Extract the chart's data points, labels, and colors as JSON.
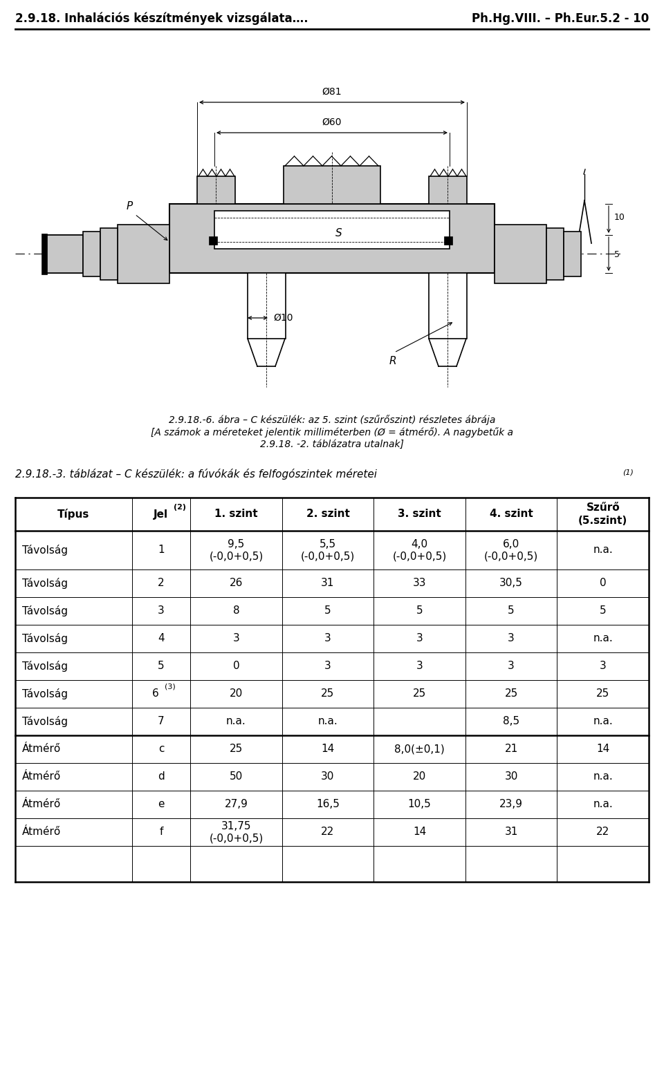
{
  "header_left": "2.9.18. Inhalációs készítmények vizsgálata….",
  "header_right": "Ph.Hg.VIII. – Ph.Eur.5.2 - 10",
  "figure_caption_line1": "2.9.18.-6. ábra – C készülék: az 5. szint (szűrőszint) részletes ábrája",
  "figure_caption_line2": "[A számok a méreteket jelentik milliméterben (Ø = átmérő). A nagybetűk a",
  "figure_caption_line3": "2.9.18. -2. táblázatra utalnak]",
  "table_title": "2.9.18.-3. táblázat – C készülék: a fúvókák és felfogószintek méretei",
  "table_title_superscript": "(1)",
  "col_headers": [
    "Típus",
    "Jel",
    "1. szint",
    "2. szint",
    "3. szint",
    "4. szint",
    "Szűrő\n(5.szint)"
  ],
  "col_header_superscripts": [
    "",
    "(2)",
    "",
    "",
    "",
    "",
    ""
  ],
  "rows": [
    {
      "tipus": "Távolság",
      "jel": "1",
      "jel_sup": "",
      "s1": "9,5\n(-0,0+0,5)",
      "s2": "5,5\n(-0,0+0,5)",
      "s3": "4,0\n(-0,0+0,5)",
      "s4": "6,0\n(-0,0+0,5)",
      "szuro": "n.a."
    },
    {
      "tipus": "Távolság",
      "jel": "2",
      "jel_sup": "",
      "s1": "26",
      "s2": "31",
      "s3": "33",
      "s4": "30,5",
      "szuro": "0"
    },
    {
      "tipus": "Távolság",
      "jel": "3",
      "jel_sup": "",
      "s1": "8",
      "s2": "5",
      "s3": "5",
      "s4": "5",
      "szuro": "5"
    },
    {
      "tipus": "Távolság",
      "jel": "4",
      "jel_sup": "",
      "s1": "3",
      "s2": "3",
      "s3": "3",
      "s4": "3",
      "szuro": "n.a."
    },
    {
      "tipus": "Távolság",
      "jel": "5",
      "jel_sup": "",
      "s1": "0",
      "s2": "3",
      "s3": "3",
      "s4": "3",
      "szuro": "3"
    },
    {
      "tipus": "Távolság",
      "jel": "6",
      "jel_sup": "(3)",
      "s1": "20",
      "s2": "25",
      "s3": "25",
      "s4": "25",
      "szuro": "25"
    },
    {
      "tipus": "Távolság",
      "jel": "7",
      "jel_sup": "",
      "s1": "n.a.",
      "s2": "n.a.",
      "s3": "",
      "s4": "8,5",
      "szuro": "n.a."
    },
    {
      "tipus": "Átmérő",
      "jel": "c",
      "jel_sup": "",
      "s1": "25",
      "s2": "14",
      "s3": "8,0(±0,1)",
      "s4": "21",
      "szuro": "14"
    },
    {
      "tipus": "Átmérő",
      "jel": "d",
      "jel_sup": "",
      "s1": "50",
      "s2": "30",
      "s3": "20",
      "s4": "30",
      "szuro": "n.a."
    },
    {
      "tipus": "Átmérő",
      "jel": "e",
      "jel_sup": "",
      "s1": "27,9",
      "s2": "16,5",
      "s3": "10,5",
      "s4": "23,9",
      "szuro": "n.a."
    },
    {
      "tipus": "Átmérő",
      "jel": "f",
      "jel_sup": "",
      "s1": "31,75\n(-0,0+0,5)",
      "s2": "22",
      "s3": "14",
      "s4": "31",
      "szuro": "22"
    }
  ],
  "font_color": "#000000",
  "bg_color": "#ffffff",
  "thick_border_after_rows": [
    0,
    7
  ],
  "extra_thick_after_row": 7,
  "font_size_header_page": 12,
  "font_size_caption": 10,
  "font_size_table_title": 11,
  "font_size_col_header": 11,
  "font_size_cell": 11
}
